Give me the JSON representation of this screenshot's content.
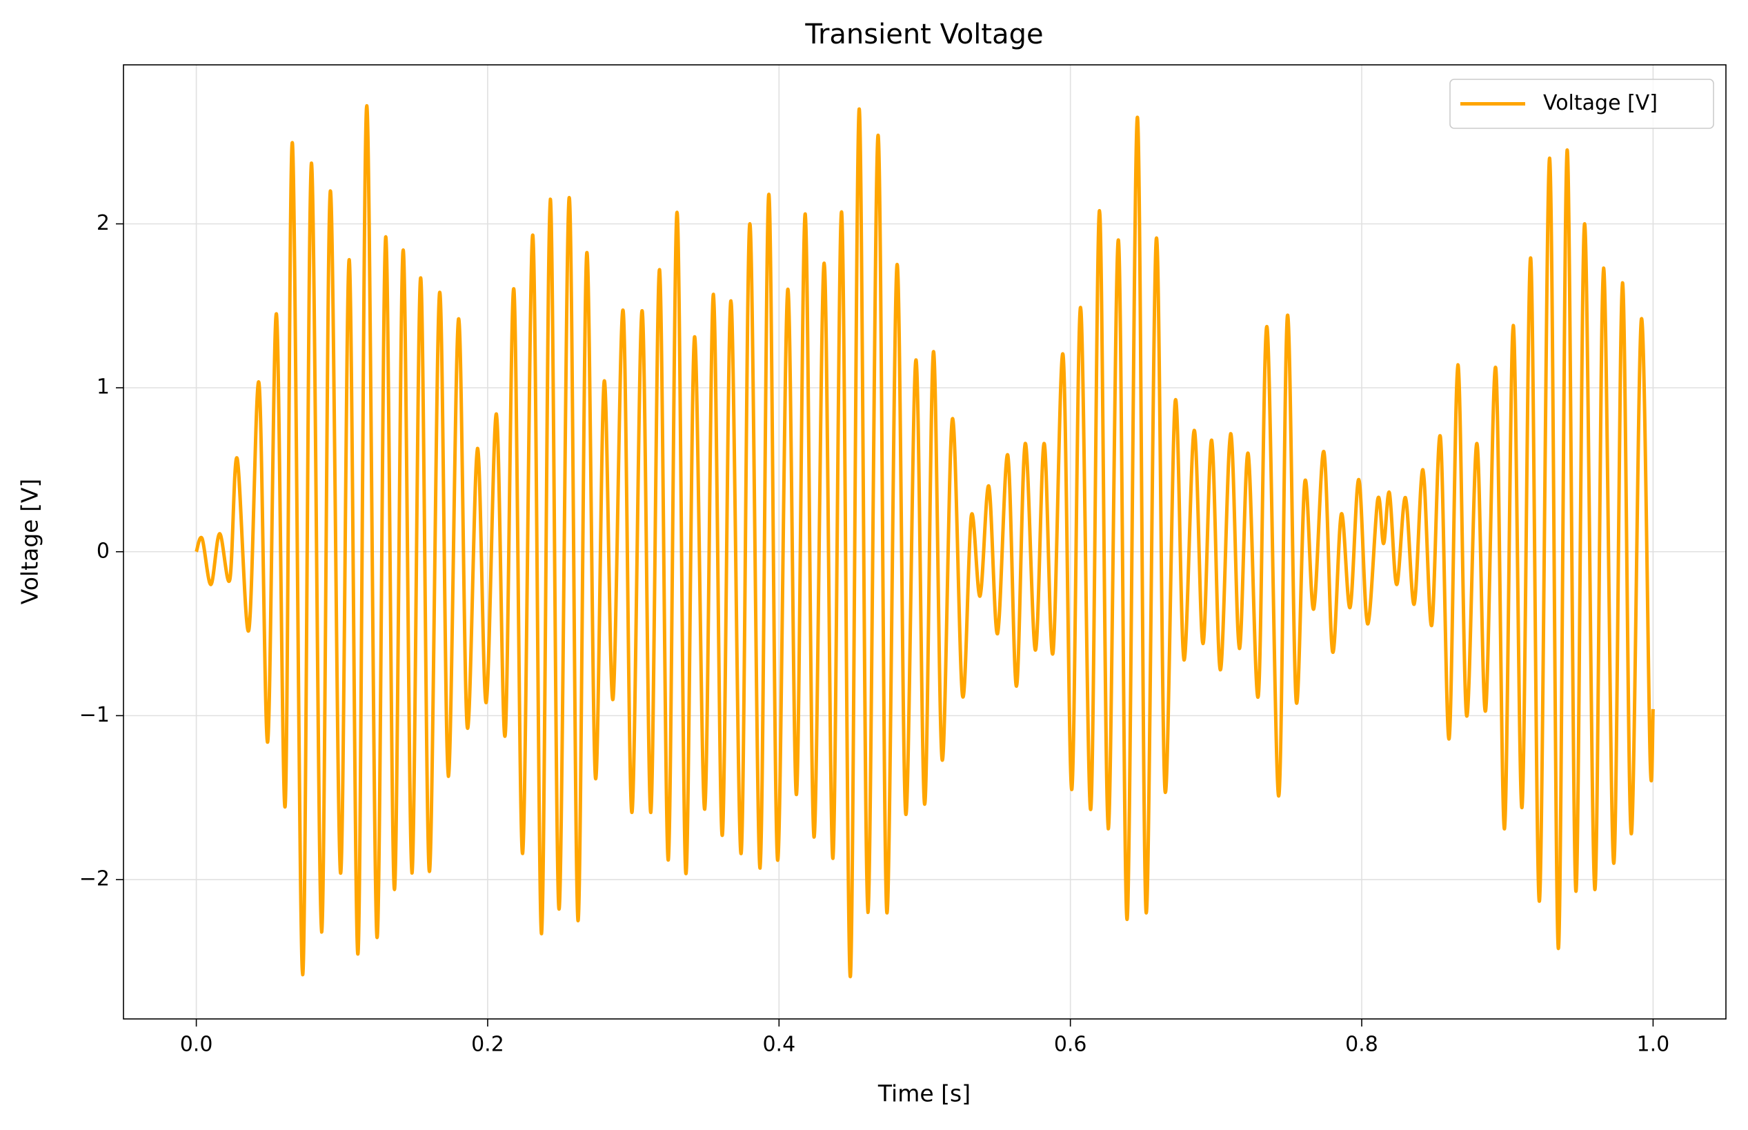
{
  "chart_data": {
    "type": "line",
    "title": "Transient Voltage",
    "xlabel": "Time [s]",
    "ylabel": "Voltage [V]",
    "x": [
      0,
      0.004,
      0.01,
      0.016,
      0.023,
      0.028,
      0.036,
      0.043,
      0.049,
      0.055,
      0.061,
      0.066,
      0.073,
      0.079,
      0.086,
      0.092,
      0.099,
      0.105,
      0.111,
      0.117,
      0.124,
      0.13,
      0.136,
      0.142,
      0.148,
      0.154,
      0.16,
      0.167,
      0.173,
      0.18,
      0.186,
      0.193,
      0.199,
      0.206,
      0.212,
      0.218,
      0.224,
      0.231,
      0.237,
      0.243,
      0.249,
      0.256,
      0.262,
      0.268,
      0.274,
      0.28,
      0.286,
      0.293,
      0.299,
      0.306,
      0.312,
      0.318,
      0.324,
      0.33,
      0.336,
      0.342,
      0.349,
      0.355,
      0.361,
      0.367,
      0.374,
      0.38,
      0.387,
      0.393,
      0.399,
      0.406,
      0.412,
      0.418,
      0.424,
      0.431,
      0.437,
      0.443,
      0.449,
      0.455,
      0.461,
      0.468,
      0.474,
      0.481,
      0.487,
      0.494,
      0.5,
      0.506,
      0.512,
      0.519,
      0.526,
      0.532,
      0.538,
      0.544,
      0.55,
      0.557,
      0.563,
      0.569,
      0.576,
      0.582,
      0.588,
      0.595,
      0.601,
      0.607,
      0.614,
      0.62,
      0.626,
      0.633,
      0.639,
      0.646,
      0.652,
      0.659,
      0.665,
      0.672,
      0.678,
      0.685,
      0.691,
      0.697,
      0.703,
      0.71,
      0.716,
      0.722,
      0.729,
      0.735,
      0.743,
      0.749,
      0.755,
      0.761,
      0.767,
      0.774,
      0.78,
      0.786,
      0.792,
      0.798,
      0.804,
      0.811,
      0.815,
      0.819,
      0.824,
      0.83,
      0.836,
      0.842,
      0.848,
      0.854,
      0.86,
      0.866,
      0.872,
      0.879,
      0.885,
      0.892,
      0.898,
      0.904,
      0.91,
      0.916,
      0.922,
      0.929,
      0.935,
      0.941,
      0.947,
      0.953,
      0.96,
      0.966,
      0.973,
      0.979,
      0.985,
      0.992,
      0.998,
      1.0
    ],
    "series": [
      {
        "name": "Voltage [V]",
        "color": "#ffa500",
        "values": [
          0,
          0.08,
          -0.2,
          0.11,
          -0.17,
          0.57,
          -0.48,
          1.03,
          -1.16,
          1.45,
          -1.55,
          2.49,
          -2.58,
          2.37,
          -2.32,
          2.2,
          -1.96,
          1.78,
          -2.45,
          2.72,
          -2.35,
          1.92,
          -2.06,
          1.84,
          -1.96,
          1.67,
          -1.95,
          1.58,
          -1.37,
          1.42,
          -1.07,
          0.63,
          -0.92,
          0.84,
          -1.12,
          1.6,
          -1.84,
          1.93,
          -2.33,
          2.15,
          -2.18,
          2.16,
          -2.25,
          1.82,
          -1.38,
          1.04,
          -0.9,
          1.47,
          -1.59,
          1.47,
          -1.59,
          1.72,
          -1.88,
          2.07,
          -1.96,
          1.31,
          -1.57,
          1.57,
          -1.73,
          1.53,
          -1.84,
          2.0,
          -1.93,
          2.18,
          -1.88,
          1.6,
          -1.48,
          2.06,
          -1.74,
          1.76,
          -1.87,
          2.07,
          -2.59,
          2.7,
          -2.2,
          2.54,
          -2.2,
          1.75,
          -1.6,
          1.17,
          -1.54,
          1.22,
          -1.27,
          0.81,
          -0.88,
          0.22,
          -0.27,
          0.4,
          -0.5,
          0.59,
          -0.82,
          0.66,
          -0.6,
          0.66,
          -0.62,
          1.2,
          -1.45,
          1.49,
          -1.57,
          2.08,
          -1.69,
          1.9,
          -2.24,
          2.65,
          -2.2,
          1.91,
          -1.46,
          0.92,
          -0.66,
          0.74,
          -0.56,
          0.68,
          -0.72,
          0.72,
          -0.59,
          0.6,
          -0.88,
          1.37,
          -1.49,
          1.44,
          -0.91,
          0.43,
          -0.35,
          0.61,
          -0.61,
          0.23,
          -0.34,
          0.44,
          -0.44,
          0.32,
          0.05,
          0.36,
          -0.2,
          0.33,
          -0.32,
          0.5,
          -0.45,
          0.7,
          -1.14,
          1.14,
          -1.0,
          0.66,
          -0.97,
          1.12,
          -1.69,
          1.38,
          -1.56,
          1.79,
          -2.13,
          2.4,
          -2.42,
          2.45,
          -2.07,
          2.0,
          -2.06,
          1.73,
          -1.9,
          1.64,
          -1.72,
          1.42,
          -1.27,
          -0.96
        ]
      }
    ],
    "xlim": [
      -0.05,
      1.05
    ],
    "ylim": [
      -2.85,
      2.97
    ],
    "xticks": [
      {
        "value": 0,
        "label": "0.0"
      },
      {
        "value": 0.2,
        "label": "0.2"
      },
      {
        "value": 0.4,
        "label": "0.4"
      },
      {
        "value": 0.6,
        "label": "0.6"
      },
      {
        "value": 0.8,
        "label": "0.8"
      },
      {
        "value": 1,
        "label": "1.0"
      }
    ],
    "yticks": [
      {
        "value": -2,
        "label": "−2"
      },
      {
        "value": -1,
        "label": "−1"
      },
      0,
      1,
      2
    ],
    "grid": true,
    "legend": "upper right"
  }
}
